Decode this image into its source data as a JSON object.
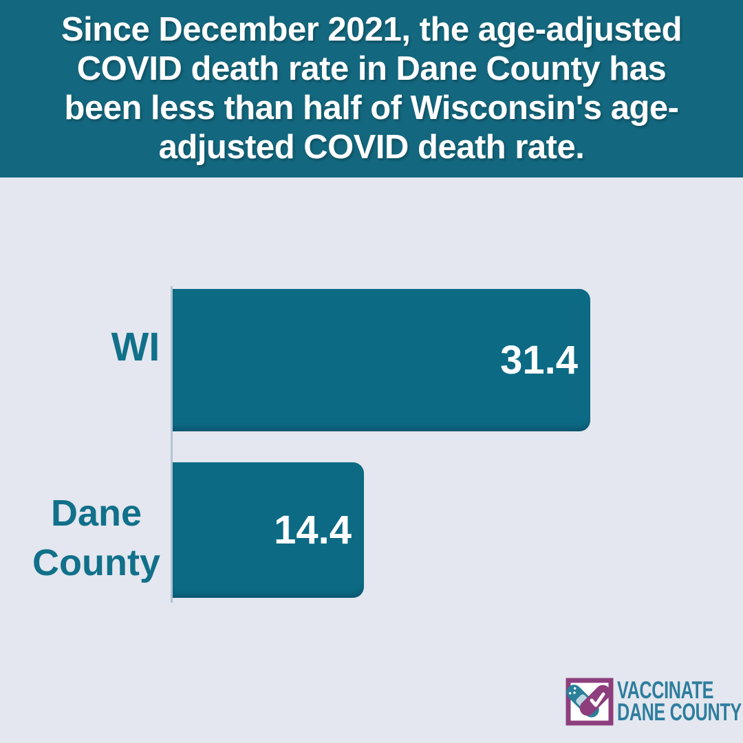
{
  "background_color": "#E4E7EF",
  "header": {
    "full_text": "Since December 2021, the age-adjusted COVID death rate in Dane County has been less than half of Wisconsin's age-adjusted COVID death rate.",
    "lines": [
      "Since December 2021, the age-adjusted",
      "COVID death rate in Dane County has",
      "been less than half of Wisconsin's age-",
      "adjusted COVID death rate."
    ],
    "bg_color": "#13677E",
    "text_color": "#FFFFFF"
  },
  "chart_data": {
    "type": "bar",
    "orientation": "horizontal",
    "title": "",
    "xlabel": "",
    "ylabel": "",
    "categories": [
      "WI",
      "Dane County"
    ],
    "values": [
      31.4,
      14.4
    ],
    "xlim": [
      0,
      31.4
    ],
    "grid": false,
    "legend": false,
    "bar_color": "#0C6A84",
    "value_label_color": "#FFFFFF",
    "category_label_color": "#11708A",
    "axis_line_color": "#B3C2D6"
  },
  "logo": {
    "line1": "VACCINATE",
    "line2": "DANE COUNTY",
    "text_color": "#2E7D9E",
    "accent_purple": "#8D3E7D",
    "icon": "bandage-with-checkmark"
  }
}
